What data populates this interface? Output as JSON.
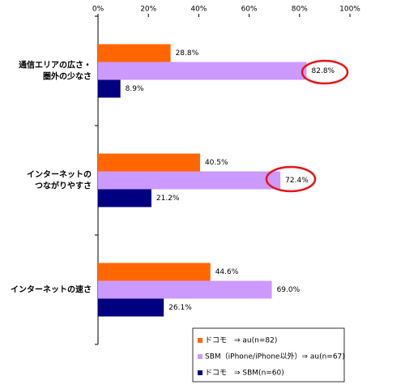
{
  "chart_data": {
    "type": "barh",
    "categories": [
      "通信エリアの広さ・\n圏外の少なさ",
      "インターネットの\nつながりやすさ",
      "インターネットの速さ"
    ],
    "series": [
      {
        "name": "ドコモ　⇒ au(n=82)",
        "color": "#ff6600",
        "values": [
          28.8,
          40.5,
          44.6
        ],
        "value_labels": [
          "28.8%",
          "40.5%",
          "44.6%"
        ]
      },
      {
        "name": "SBM（iPhone/iPhone以外）⇒ au(n=67)",
        "color": "#cc99ff",
        "values": [
          82.8,
          72.4,
          69.0
        ],
        "value_labels": [
          "82.8%",
          "72.4%",
          "69.0%"
        ]
      },
      {
        "name": "ドコモ　⇒ SBM(n=60)",
        "color": "#000080",
        "values": [
          8.9,
          21.2,
          26.1
        ],
        "value_labels": [
          "8.9%",
          "21.2%",
          "26.1%"
        ]
      }
    ],
    "xlim": [
      0,
      100
    ],
    "xticks": [
      {
        "value": 0,
        "label": "0%"
      },
      {
        "value": 20,
        "label": "20%"
      },
      {
        "value": 40,
        "label": "40%"
      },
      {
        "value": 60,
        "label": "60%"
      },
      {
        "value": 80,
        "label": "80%"
      },
      {
        "value": 100,
        "label": "100%"
      }
    ],
    "legend": "bottom-right"
  }
}
